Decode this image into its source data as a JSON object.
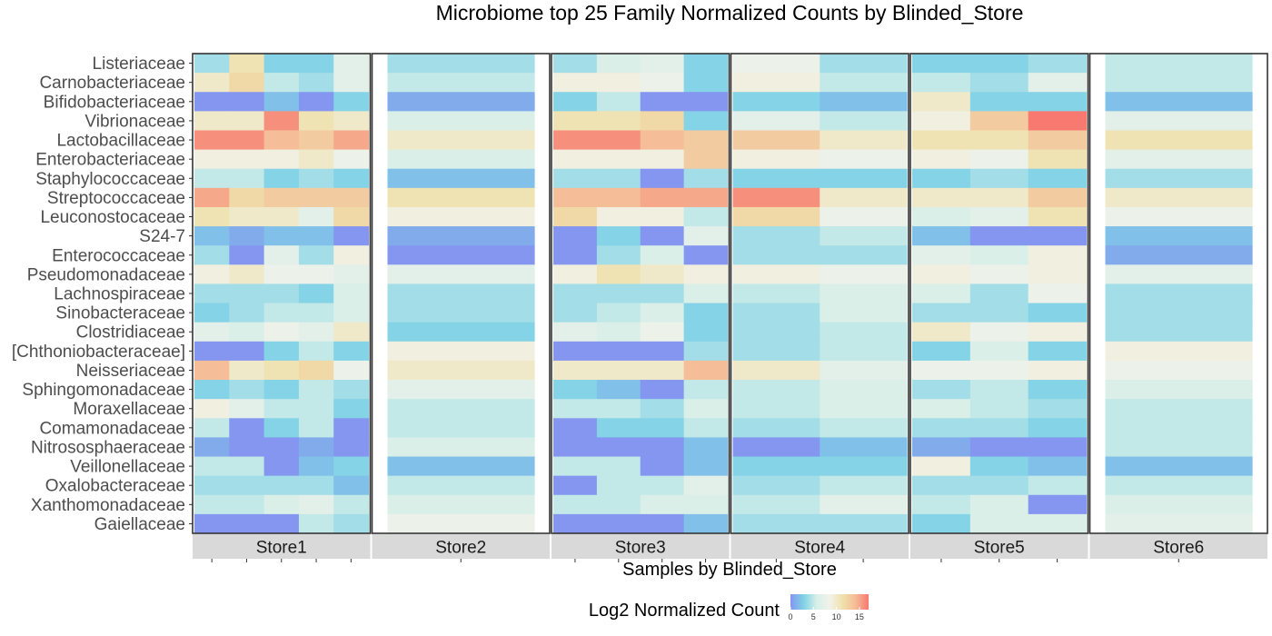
{
  "chart_data": {
    "type": "heatmap",
    "title": "Microbiome top 25 Family Normalized Counts by Blinded_Store",
    "xlabel": "Samples by Blinded_Store",
    "ylabel": "",
    "families": [
      "Listeriaceae",
      "Carnobacteriaceae",
      "Bifidobacteriaceae",
      "Vibrionaceae",
      "Lactobacillaceae",
      "Enterobacteriaceae",
      "Staphylococcaceae",
      "Streptococcaceae",
      "Leuconostocaceae",
      "S24-7",
      "Enterococcaceae",
      "Pseudomonadaceae",
      "Lachnospiraceae",
      "Sinobacteraceae",
      "Clostridiaceae",
      "[Chthoniobacteraceae]",
      "Neisseriaceae",
      "Sphingomonadaceae",
      "Moraxellaceae",
      "Comamonadaceae",
      "Nitrososphaeraceae",
      "Veillonellaceae",
      "Oxalobacteraceae",
      "Xanthomonadaceae",
      "Gaiellaceae"
    ],
    "stores": [
      {
        "name": "Store1",
        "values": [
          [
            4,
            11,
            3,
            3,
            7
          ],
          [
            10,
            12,
            5,
            4,
            7
          ],
          [
            0,
            0,
            2,
            0,
            3
          ],
          [
            10,
            10,
            16,
            11,
            10
          ],
          [
            16,
            16,
            14,
            13,
            15
          ],
          [
            9,
            9,
            9,
            10,
            8
          ],
          [
            5,
            5,
            3,
            4,
            3
          ],
          [
            15,
            12,
            13,
            13,
            13
          ],
          [
            11,
            10,
            10,
            7,
            12
          ],
          [
            2,
            1,
            2,
            2,
            0
          ],
          [
            4,
            0,
            7,
            4,
            9
          ],
          [
            9,
            10,
            8,
            8,
            7
          ],
          [
            4,
            4,
            4,
            3,
            6
          ],
          [
            3,
            4,
            5,
            5,
            6
          ],
          [
            7,
            6,
            8,
            7,
            10
          ],
          [
            0,
            0,
            3,
            5,
            3
          ],
          [
            14,
            10,
            11,
            12,
            8
          ],
          [
            3,
            4,
            3,
            5,
            4
          ],
          [
            9,
            7,
            5,
            5,
            3
          ],
          [
            5,
            0,
            3,
            5,
            0
          ],
          [
            1,
            0,
            0,
            1,
            0
          ],
          [
            5,
            5,
            0,
            2,
            3
          ],
          [
            4,
            4,
            4,
            4,
            2
          ],
          [
            5,
            5,
            6,
            7,
            5
          ],
          [
            0,
            0,
            0,
            5,
            4
          ]
        ]
      },
      {
        "name": "Store2",
        "values": [
          [
            4
          ],
          [
            5
          ],
          [
            1
          ],
          [
            6
          ],
          [
            10
          ],
          [
            6
          ],
          [
            2
          ],
          [
            11
          ],
          [
            9
          ],
          [
            1
          ],
          [
            0
          ],
          [
            7
          ],
          [
            4
          ],
          [
            4
          ],
          [
            3
          ],
          [
            9
          ],
          [
            10
          ],
          [
            7
          ],
          [
            5
          ],
          [
            5
          ],
          [
            6
          ],
          [
            2
          ],
          [
            5
          ],
          [
            6
          ],
          [
            8
          ]
        ]
      },
      {
        "name": "Store3",
        "values": [
          [
            4,
            6,
            7,
            3
          ],
          [
            9,
            9,
            8,
            3
          ],
          [
            3,
            5,
            0,
            0
          ],
          [
            11,
            11,
            12,
            3
          ],
          [
            16,
            16,
            14,
            13
          ],
          [
            9,
            9,
            9,
            13
          ],
          [
            4,
            4,
            0,
            4
          ],
          [
            14,
            14,
            15,
            15
          ],
          [
            12,
            9,
            9,
            5
          ],
          [
            0,
            3,
            0,
            7
          ],
          [
            0,
            4,
            6,
            0
          ],
          [
            9,
            11,
            10,
            9
          ],
          [
            4,
            4,
            4,
            6
          ],
          [
            4,
            5,
            6,
            3
          ],
          [
            7,
            6,
            8,
            3
          ],
          [
            0,
            0,
            0,
            4
          ],
          [
            10,
            10,
            10,
            14
          ],
          [
            3,
            2,
            0,
            5
          ],
          [
            5,
            5,
            4,
            6
          ],
          [
            0,
            3,
            3,
            5
          ],
          [
            0,
            0,
            0,
            2
          ],
          [
            5,
            5,
            0,
            2
          ],
          [
            0,
            5,
            5,
            7
          ],
          [
            5,
            5,
            6,
            6
          ],
          [
            0,
            0,
            0,
            2
          ]
        ]
      },
      {
        "name": "Store4",
        "values": [
          [
            8,
            4
          ],
          [
            9,
            5
          ],
          [
            3,
            2
          ],
          [
            7,
            5
          ],
          [
            13,
            10
          ],
          [
            9,
            8
          ],
          [
            3,
            3
          ],
          [
            16,
            10
          ],
          [
            12,
            8
          ],
          [
            4,
            5
          ],
          [
            4,
            4
          ],
          [
            9,
            8
          ],
          [
            5,
            6
          ],
          [
            4,
            6
          ],
          [
            4,
            5
          ],
          [
            4,
            5
          ],
          [
            10,
            7
          ],
          [
            5,
            6
          ],
          [
            5,
            6
          ],
          [
            4,
            5
          ],
          [
            0,
            2
          ],
          [
            3,
            3
          ],
          [
            4,
            5
          ],
          [
            5,
            7
          ],
          [
            4,
            4
          ]
        ]
      },
      {
        "name": "Store5",
        "values": [
          [
            3,
            3,
            4
          ],
          [
            5,
            4,
            7
          ],
          [
            10,
            3,
            3
          ],
          [
            9,
            13,
            17
          ],
          [
            11,
            11,
            13
          ],
          [
            9,
            8,
            11
          ],
          [
            3,
            4,
            3
          ],
          [
            10,
            10,
            13
          ],
          [
            6,
            7,
            11
          ],
          [
            2,
            0,
            0
          ],
          [
            7,
            6,
            9
          ],
          [
            9,
            8,
            9
          ],
          [
            6,
            4,
            8
          ],
          [
            4,
            4,
            3
          ],
          [
            10,
            8,
            9
          ],
          [
            3,
            6,
            3
          ],
          [
            8,
            8,
            9
          ],
          [
            4,
            5,
            3
          ],
          [
            6,
            5,
            4
          ],
          [
            4,
            4,
            3
          ],
          [
            1,
            0,
            0
          ],
          [
            9,
            3,
            2
          ],
          [
            4,
            4,
            5
          ],
          [
            5,
            6,
            0
          ],
          [
            3,
            6,
            6
          ]
        ]
      },
      {
        "name": "Store6",
        "values": [
          [
            5
          ],
          [
            5
          ],
          [
            2
          ],
          [
            7
          ],
          [
            11
          ],
          [
            7
          ],
          [
            4
          ],
          [
            10
          ],
          [
            8
          ],
          [
            2
          ],
          [
            1
          ],
          [
            7
          ],
          [
            4
          ],
          [
            4
          ],
          [
            4
          ],
          [
            9
          ],
          [
            8
          ],
          [
            6
          ],
          [
            5
          ],
          [
            5
          ],
          [
            5
          ],
          [
            2
          ],
          [
            5
          ],
          [
            6
          ],
          [
            7
          ]
        ]
      }
    ],
    "legend": {
      "title": "Log2 Normalized Count",
      "ticks": [
        0,
        5,
        10,
        15
      ],
      "range": [
        0,
        17
      ],
      "colors": [
        "#8496f0",
        "#7fd1e6",
        "#d6efe8",
        "#f1f2ea",
        "#f0e1ac",
        "#f5bb97",
        "#f7796f"
      ],
      "position": "bottom"
    },
    "grid": false
  }
}
